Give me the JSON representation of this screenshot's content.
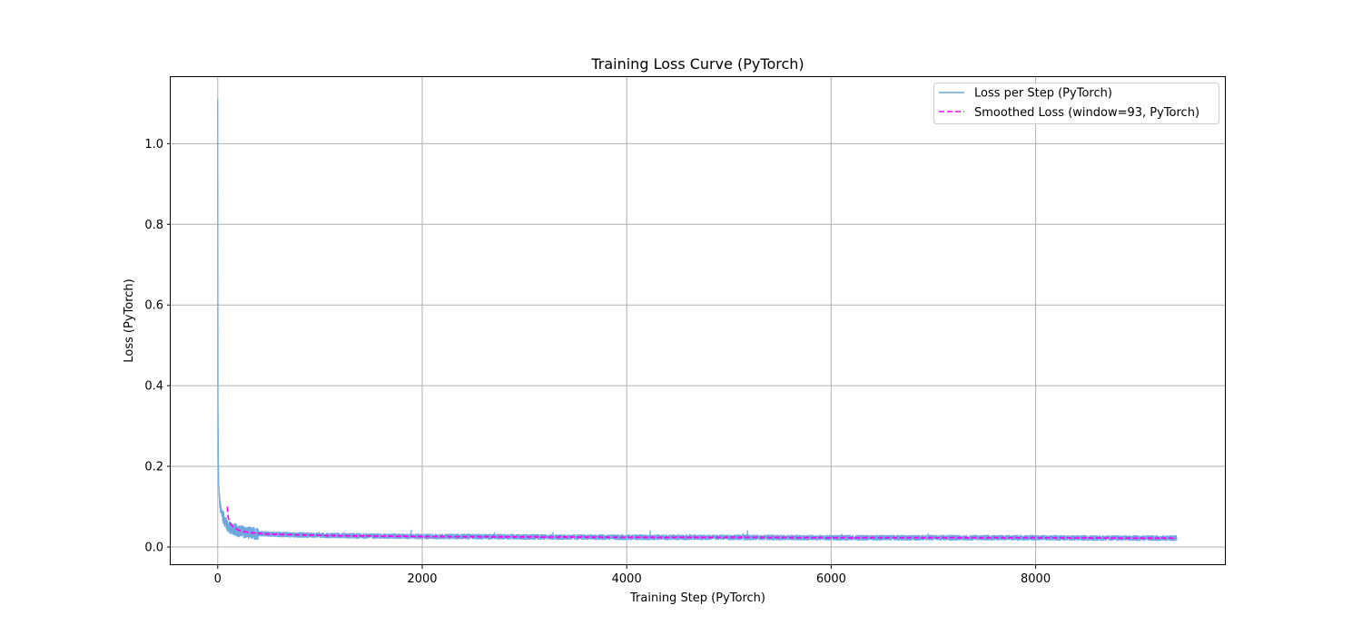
{
  "chart_data": {
    "type": "line",
    "title": "Training Loss Curve (PyTorch)",
    "xlabel": "Training Step (PyTorch)",
    "ylabel": "Loss (PyTorch)",
    "xlim": [
      -460,
      9860
    ],
    "ylim": [
      -0.045,
      1.165
    ],
    "x_ticks": [
      0,
      2000,
      4000,
      6000,
      8000
    ],
    "y_ticks": [
      0.0,
      0.2,
      0.4,
      0.6,
      0.8,
      1.0
    ],
    "x_tick_labels": [
      "0",
      "2000",
      "4000",
      "6000",
      "8000"
    ],
    "y_tick_labels": [
      "0.0",
      "0.2",
      "0.4",
      "0.6",
      "0.8",
      "1.0"
    ],
    "grid": true,
    "legend_position": "top-right",
    "total_steps": 9380,
    "colors": {
      "raw": "#6fa8dc",
      "smoothed": "#ff00ff",
      "grid": "#b0b0b0"
    },
    "series": [
      {
        "name": "Loss per Step (PyTorch)",
        "style": "solid",
        "x": [
          0,
          2,
          4,
          6,
          8,
          10,
          15,
          20,
          30,
          40,
          60,
          80,
          100,
          150,
          200,
          300,
          500,
          800,
          1200,
          2000,
          2500,
          3000,
          4000,
          5000,
          6000,
          7000,
          8000,
          9000,
          9380
        ],
        "y": [
          1.11,
          0.37,
          0.29,
          0.21,
          0.17,
          0.15,
          0.13,
          0.11,
          0.09,
          0.085,
          0.07,
          0.06,
          0.05,
          0.045,
          0.04,
          0.035,
          0.032,
          0.03,
          0.028,
          0.026,
          0.026,
          0.025,
          0.024,
          0.024,
          0.023,
          0.023,
          0.023,
          0.022,
          0.022
        ],
        "noise_amplitude": 0.006
      },
      {
        "name": "Smoothed Loss (window=93, PyTorch)",
        "style": "dashed",
        "x": [
          93,
          100,
          120,
          150,
          200,
          300,
          500,
          800,
          1200,
          2000,
          3000,
          4000,
          5000,
          6000,
          7000,
          8000,
          9000,
          9380
        ],
        "y": [
          0.1,
          0.075,
          0.06,
          0.05,
          0.042,
          0.036,
          0.032,
          0.03,
          0.028,
          0.026,
          0.025,
          0.024,
          0.024,
          0.023,
          0.023,
          0.023,
          0.022,
          0.022
        ]
      }
    ]
  }
}
